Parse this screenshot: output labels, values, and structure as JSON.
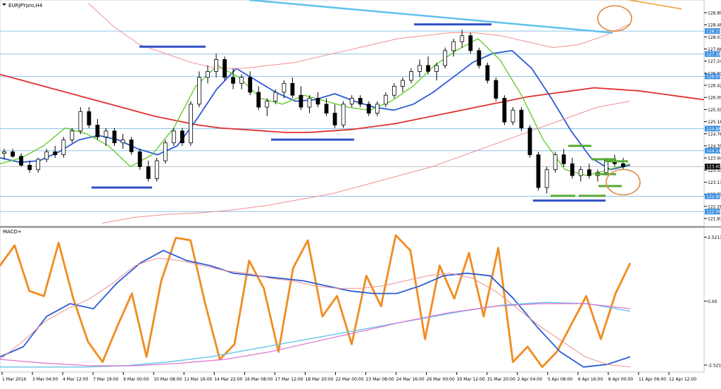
{
  "chart_data": {
    "type": "line",
    "symbol_label": "EURJPYpro,H4",
    "indicator_label": "MACD+",
    "price_axis": {
      "min": 121.6,
      "max": 129.2,
      "ticks": [
        "128.892",
        "128.482",
        "128.072",
        "127.662",
        "127.242",
        "126.832",
        "126.422",
        "126.002",
        "125.592",
        "125.182",
        "124.762",
        "124.352",
        "123.942",
        "123.532",
        "123.112",
        "122.702",
        "122.282",
        "121.872"
      ]
    },
    "price_level_labels": [
      "128.155",
      "127.385",
      "126.634",
      "124.880",
      "124.140",
      "123.605",
      "122.605",
      "122.090"
    ],
    "current_price": "123.605",
    "macd_axis": {
      "min": -2.8,
      "max": 2.9,
      "ticks": [
        "2.5211",
        "0.00",
        "-2.5211"
      ]
    },
    "time_labels": [
      "1 Mar 2016",
      "3 Mar 04:00",
      "4 Mar 12:00",
      "7 Mar 19:00",
      "9 Mar 00:00",
      "10 Mar 08:00",
      "11 Mar 16:00",
      "14 Mar 22:00",
      "16 Mar 08:00",
      "17 Mar 12:00",
      "18 Mar 20:00",
      "22 Mar 00:00",
      "23 Mar 08:00",
      "24 Mar 16:00",
      "26 Mar 00:00",
      "30 Mar 12:00",
      "31 Mar 20:00",
      "2 Apr 04:00",
      "5 Apr 08:00",
      "6 Apr 16:00",
      "8 Apr 00:00",
      "11 Apr 06:00",
      "12 Apr 12:00"
    ],
    "candles": [
      [
        124.05,
        124.2,
        123.85,
        124.1
      ],
      [
        124.1,
        124.2,
        123.9,
        123.95
      ],
      [
        123.95,
        124.05,
        123.6,
        123.65
      ],
      [
        123.65,
        123.8,
        123.4,
        123.5
      ],
      [
        123.5,
        123.9,
        123.4,
        123.85
      ],
      [
        123.85,
        124.2,
        123.75,
        124.1
      ],
      [
        124.1,
        124.3,
        123.9,
        124.0
      ],
      [
        124.0,
        124.6,
        123.9,
        124.5
      ],
      [
        124.5,
        124.9,
        124.4,
        124.8
      ],
      [
        124.8,
        125.6,
        124.7,
        125.45
      ],
      [
        125.45,
        125.6,
        124.9,
        125.0
      ],
      [
        125.0,
        125.2,
        124.5,
        124.6
      ],
      [
        124.6,
        124.9,
        124.3,
        124.8
      ],
      [
        124.8,
        124.9,
        124.3,
        124.4
      ],
      [
        124.4,
        124.7,
        124.2,
        124.5
      ],
      [
        124.5,
        124.6,
        124.0,
        124.1
      ],
      [
        124.1,
        124.2,
        123.5,
        123.6
      ],
      [
        123.6,
        123.8,
        123.1,
        123.2
      ],
      [
        123.2,
        123.9,
        123.1,
        123.8
      ],
      [
        123.8,
        124.5,
        123.7,
        124.4
      ],
      [
        124.4,
        124.9,
        124.3,
        124.8
      ],
      [
        124.8,
        124.9,
        124.3,
        124.4
      ],
      [
        124.4,
        125.8,
        124.3,
        125.7
      ],
      [
        125.7,
        126.8,
        125.6,
        126.6
      ],
      [
        126.6,
        127.0,
        126.4,
        126.8
      ],
      [
        126.8,
        127.4,
        126.6,
        127.2
      ],
      [
        127.2,
        127.3,
        126.5,
        126.6
      ],
      [
        126.6,
        126.9,
        126.2,
        126.4
      ],
      [
        126.4,
        126.7,
        126.2,
        126.6
      ],
      [
        126.6,
        126.8,
        126.0,
        126.1
      ],
      [
        126.1,
        126.3,
        125.5,
        125.6
      ],
      [
        125.6,
        125.9,
        125.3,
        125.8
      ],
      [
        125.8,
        126.2,
        125.7,
        126.1
      ],
      [
        126.1,
        126.5,
        125.9,
        126.4
      ],
      [
        126.4,
        126.6,
        125.9,
        126.0
      ],
      [
        126.0,
        126.3,
        125.5,
        125.6
      ],
      [
        125.6,
        126.0,
        125.4,
        125.9
      ],
      [
        125.9,
        126.1,
        125.6,
        125.7
      ],
      [
        125.7,
        125.9,
        125.3,
        125.4
      ],
      [
        125.4,
        125.7,
        124.9,
        125.0
      ],
      [
        125.0,
        125.8,
        124.9,
        125.7
      ],
      [
        125.7,
        126.0,
        125.6,
        125.9
      ],
      [
        125.9,
        126.0,
        125.6,
        125.7
      ],
      [
        125.7,
        125.8,
        125.3,
        125.4
      ],
      [
        125.4,
        125.8,
        125.3,
        125.7
      ],
      [
        125.7,
        126.1,
        125.6,
        126.0
      ],
      [
        126.0,
        126.4,
        125.9,
        126.3
      ],
      [
        126.3,
        126.6,
        126.1,
        126.5
      ],
      [
        126.5,
        126.9,
        126.4,
        126.8
      ],
      [
        126.8,
        127.2,
        126.6,
        127.0
      ],
      [
        127.0,
        127.3,
        126.7,
        126.8
      ],
      [
        126.8,
        127.1,
        126.5,
        127.0
      ],
      [
        127.0,
        127.6,
        126.9,
        127.5
      ],
      [
        127.5,
        127.9,
        127.3,
        127.8
      ],
      [
        127.8,
        128.2,
        127.6,
        128.0
      ],
      [
        128.0,
        128.1,
        127.4,
        127.5
      ],
      [
        127.5,
        127.6,
        126.9,
        127.0
      ],
      [
        127.0,
        127.1,
        126.4,
        126.5
      ],
      [
        126.5,
        126.6,
        125.8,
        125.9
      ],
      [
        125.9,
        126.0,
        125.0,
        125.1
      ],
      [
        125.1,
        125.6,
        125.0,
        125.5
      ],
      [
        125.5,
        125.6,
        124.8,
        124.9
      ],
      [
        124.9,
        125.0,
        123.9,
        124.0
      ],
      [
        124.0,
        124.1,
        122.8,
        122.9
      ],
      [
        122.9,
        123.6,
        122.7,
        123.5
      ],
      [
        123.5,
        124.1,
        123.4,
        124.0
      ],
      [
        124.0,
        124.2,
        123.6,
        123.7
      ],
      [
        123.7,
        123.9,
        123.2,
        123.3
      ],
      [
        123.3,
        123.6,
        123.1,
        123.5
      ],
      [
        123.5,
        123.7,
        123.2,
        123.3
      ],
      [
        123.3,
        123.5,
        123.1,
        123.4
      ],
      [
        123.4,
        123.9,
        123.3,
        123.8
      ],
      [
        123.8,
        124.0,
        123.6,
        123.7
      ],
      [
        123.7,
        123.9,
        123.5,
        123.6
      ]
    ],
    "series": [
      {
        "role": "ma_slow",
        "color": "#e03030",
        "values": [
          126.7,
          126.5,
          126.3,
          126.1,
          125.9,
          125.7,
          125.5,
          125.3,
          125.15,
          125.0,
          124.9,
          124.85,
          124.8,
          124.75,
          124.75,
          124.8,
          124.85,
          124.95,
          125.05,
          125.2,
          125.35,
          125.5,
          125.65,
          125.8,
          125.95,
          126.05,
          126.15,
          126.25,
          126.2,
          126.15,
          126.05,
          125.95,
          125.85
        ]
      },
      {
        "role": "ma_fast_blue",
        "color": "#2b5bd6",
        "values": [
          123.9,
          123.75,
          123.8,
          124.1,
          124.5,
          124.65,
          124.5,
          124.2,
          124.0,
          124.3,
          125.2,
          126.2,
          126.9,
          126.5,
          126.1,
          125.8,
          125.85,
          126.05,
          125.8,
          125.6,
          125.5,
          125.7,
          126.1,
          126.6,
          127.1,
          127.4,
          127.5,
          126.9,
          125.9,
          124.8,
          123.9,
          123.5,
          123.65
        ]
      },
      {
        "role": "ma_fast_green",
        "color": "#66cc33",
        "values": [
          123.7,
          123.9,
          124.3,
          124.9,
          124.7,
          124.3,
          123.6,
          124.0,
          124.9,
          126.3,
          127.0,
          126.6,
          125.9,
          125.7,
          126.0,
          125.8,
          125.6,
          125.5,
          125.8,
          126.3,
          127.0,
          127.5,
          127.9,
          127.2,
          126.0,
          124.5,
          123.5,
          123.3,
          123.5,
          123.7
        ]
      },
      {
        "role": "envelope_upper",
        "color": "#f09090",
        "values": [
          129.1,
          128.3,
          127.7,
          127.4,
          127.1,
          126.9,
          126.9,
          127.0,
          127.1,
          127.3,
          127.5,
          127.7,
          127.9,
          128.0,
          128.1,
          128.1,
          128.0,
          127.8,
          127.6,
          127.7,
          128.0,
          128.4
        ]
      },
      {
        "role": "envelope_lower",
        "color": "#f09090",
        "values": [
          121.7,
          121.9,
          122.0,
          122.05,
          122.15,
          122.3,
          122.5,
          122.7,
          123.0,
          123.3,
          123.6,
          124.0,
          124.4,
          124.8,
          125.2,
          125.6,
          125.8
        ]
      }
    ],
    "macd_series": [
      {
        "role": "oscillator",
        "color": "#f08a1c",
        "values": [
          1.4,
          2.2,
          0.4,
          0.2,
          2.3,
          0.1,
          -1.6,
          -2.4,
          -1.0,
          0.3,
          -2.2,
          0.8,
          2.5,
          2.4,
          -0.1,
          -2.3,
          -1.7,
          1.6,
          0.5,
          -2.0,
          1.3,
          2.4,
          -0.6,
          0.2,
          -1.7,
          1.0,
          -0.2,
          2.6,
          2.0,
          -1.5,
          1.4,
          0.1,
          1.9,
          -0.6,
          2.1,
          -2.4,
          -1.8,
          -2.6,
          -2.0,
          -0.9,
          0.2,
          -1.5,
          0.3,
          1.5
        ]
      },
      {
        "role": "main_blue",
        "color": "#2b5bd6",
        "values": [
          -2.2,
          -1.8,
          -0.6,
          -0.1,
          -0.3,
          0.7,
          1.5,
          2.0,
          1.6,
          1.4,
          1.1,
          1.0,
          0.9,
          0.8,
          0.6,
          0.4,
          0.3,
          0.3,
          0.6,
          1.0,
          1.1,
          1.0,
          0.1,
          -1.0,
          -2.0,
          -2.6,
          -2.5,
          -2.2
        ]
      },
      {
        "role": "signal_pink",
        "color": "#f09090",
        "values": [
          -2.3,
          -1.6,
          -0.8,
          -0.3,
          0.1,
          0.7,
          1.4,
          1.7,
          1.6,
          1.4,
          1.2,
          1.1,
          0.9,
          0.8,
          0.6,
          0.5,
          0.5,
          0.6,
          0.8,
          1.0,
          1.1,
          0.9,
          0.4,
          -0.3,
          -1.0,
          -1.6,
          -2.2,
          -2.5,
          -2.6
        ]
      },
      {
        "role": "long_cyan",
        "color": "#66c6e8",
        "values": [
          -2.6,
          -2.6,
          -2.6,
          -2.55,
          -2.4,
          -2.2,
          -1.9,
          -1.6,
          -1.3,
          -1.0,
          -0.7,
          -0.4,
          -0.15,
          -0.05,
          -0.1,
          -0.4
        ]
      },
      {
        "role": "long_magenta",
        "color": "#e070d0",
        "values": [
          -2.3,
          -2.45,
          -2.55,
          -2.55,
          -2.45,
          -2.3,
          -2.0,
          -1.6,
          -1.2,
          -0.8,
          -0.45,
          -0.2,
          -0.1,
          -0.1,
          -0.3
        ]
      }
    ],
    "trendlines": [
      {
        "role": "cyan_trendline",
        "color": "#5ec1ee",
        "from": [
          0.354,
          129.2
        ],
        "to": [
          0.87,
          128.1
        ]
      },
      {
        "role": "orange_trendline",
        "color": "#f0a040",
        "from": [
          0.77,
          129.7
        ],
        "to": [
          0.968,
          128.9
        ]
      }
    ],
    "horizontal_levels": [
      128.155,
      127.385,
      126.634,
      124.88,
      124.14,
      122.605,
      122.09
    ],
    "current_level": 123.605,
    "annotations": {
      "blue_segments": [
        [
          0.13,
          0.216,
          122.9
        ],
        [
          0.198,
          0.292,
          127.63
        ],
        [
          0.385,
          0.503,
          124.51
        ],
        [
          0.588,
          0.698,
          128.38
        ],
        [
          0.757,
          0.86,
          122.46
        ]
      ],
      "green_segments": [
        [
          0.782,
          0.817,
          122.62
        ],
        [
          0.807,
          0.84,
          124.3
        ],
        [
          0.822,
          0.86,
          122.62
        ],
        [
          0.84,
          0.875,
          123.85
        ],
        [
          0.845,
          0.875,
          123.35
        ],
        [
          0.85,
          0.883,
          122.95
        ],
        [
          0.86,
          0.892,
          123.78
        ]
      ],
      "orange_ellipses": [
        [
          0.873,
          128.58
        ],
        [
          0.885,
          123.08
        ]
      ]
    }
  }
}
